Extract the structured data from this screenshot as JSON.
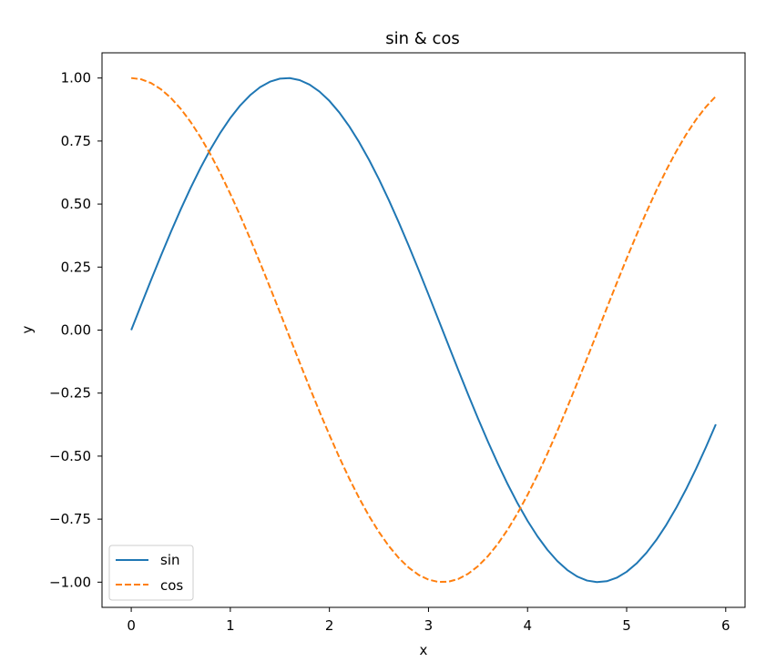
{
  "chart_data": {
    "type": "line",
    "title": "sin & cos",
    "xlabel": "x",
    "ylabel": "y",
    "xlim": [
      -0.295,
      6.195
    ],
    "ylim": [
      -1.1,
      1.1
    ],
    "xticks": [
      0,
      1,
      2,
      3,
      4,
      5,
      6
    ],
    "yticks": [
      -1.0,
      -0.75,
      -0.5,
      -0.25,
      0.0,
      0.25,
      0.5,
      0.75,
      1.0
    ],
    "ytick_labels": [
      "−1.00",
      "−0.75",
      "−0.50",
      "−0.25",
      "0.00",
      "0.25",
      "0.50",
      "0.75",
      "1.00"
    ],
    "grid": false,
    "legend_position": "lower-left",
    "x": [
      0.0,
      0.1,
      0.2,
      0.3,
      0.4,
      0.5,
      0.6,
      0.7,
      0.8,
      0.9,
      1.0,
      1.1,
      1.2,
      1.3,
      1.4,
      1.5,
      1.6,
      1.7,
      1.8,
      1.9,
      2.0,
      2.1,
      2.2,
      2.3,
      2.4,
      2.5,
      2.6,
      2.7,
      2.8,
      2.9,
      3.0,
      3.1,
      3.2,
      3.3,
      3.4,
      3.5,
      3.6,
      3.7,
      3.8,
      3.9,
      4.0,
      4.1,
      4.2,
      4.3,
      4.4,
      4.5,
      4.6,
      4.7,
      4.8,
      4.9,
      5.0,
      5.1,
      5.2,
      5.3,
      5.4,
      5.5,
      5.6,
      5.7,
      5.8,
      5.9
    ],
    "series": [
      {
        "name": "sin",
        "color": "#1f77b4",
        "style": "solid",
        "values": [
          0.0,
          0.0998,
          0.1987,
          0.2955,
          0.3894,
          0.4794,
          0.5646,
          0.6442,
          0.7174,
          0.7833,
          0.8415,
          0.8912,
          0.932,
          0.9636,
          0.9854,
          0.9975,
          0.9996,
          0.9917,
          0.9738,
          0.9463,
          0.9093,
          0.8632,
          0.8085,
          0.7457,
          0.6755,
          0.5985,
          0.5155,
          0.4274,
          0.335,
          0.2392,
          0.1411,
          0.0416,
          -0.0584,
          -0.1577,
          -0.2555,
          -0.3508,
          -0.4425,
          -0.5298,
          -0.6119,
          -0.6878,
          -0.7568,
          -0.8183,
          -0.8716,
          -0.9162,
          -0.9516,
          -0.9775,
          -0.9937,
          -0.9999,
          -0.9962,
          -0.9825,
          -0.9589,
          -0.9258,
          -0.8835,
          -0.8323,
          -0.7728,
          -0.7055,
          -0.6313,
          -0.5507,
          -0.4646,
          -0.3739
        ]
      },
      {
        "name": "cos",
        "color": "#ff7f0e",
        "style": "dashed",
        "values": [
          1.0,
          0.995,
          0.9801,
          0.9553,
          0.9211,
          0.8776,
          0.8253,
          0.7648,
          0.6967,
          0.6216,
          0.5403,
          0.4536,
          0.3624,
          0.2675,
          0.17,
          0.0707,
          -0.0292,
          -0.1288,
          -0.2272,
          -0.3233,
          -0.4161,
          -0.5048,
          -0.5885,
          -0.6663,
          -0.7374,
          -0.8011,
          -0.8569,
          -0.904,
          -0.9422,
          -0.971,
          -0.99,
          -0.9991,
          -0.9983,
          -0.9875,
          -0.9668,
          -0.9365,
          -0.8968,
          -0.8481,
          -0.791,
          -0.7259,
          -0.6536,
          -0.5748,
          -0.4903,
          -0.4008,
          -0.3073,
          -0.2108,
          -0.1122,
          -0.0124,
          0.0875,
          0.1865,
          0.2837,
          0.378,
          0.4685,
          0.5544,
          0.6347,
          0.7087,
          0.7756,
          0.8347,
          0.8855,
          0.9275
        ]
      }
    ]
  }
}
